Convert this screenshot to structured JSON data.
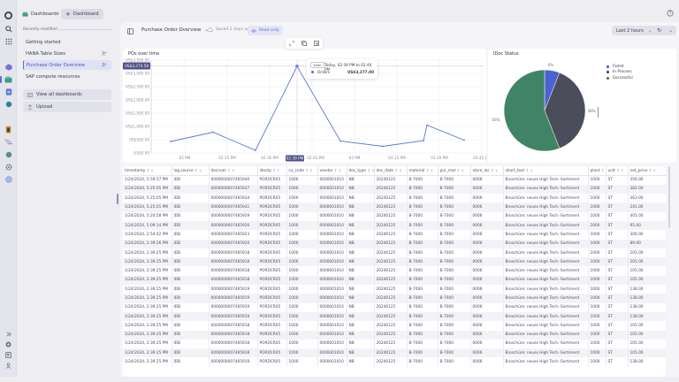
{
  "rail": {
    "icons": [
      "app-logo-icon",
      "search-icon",
      "apps-grid-icon",
      "cube-icon",
      "dashboards-icon",
      "notebooks-icon",
      "settings-hub-icon",
      "battery-icon",
      "timeline-icon",
      "extension-icon",
      "gear-icon",
      "circle-app-icon"
    ],
    "bottom_icons": [
      "expand-icon",
      "help-circle-icon",
      "news-icon",
      "user-icon"
    ]
  },
  "topbar": {
    "dashboards_label": "Dashboards",
    "add_dashboard_label": "Dashboard"
  },
  "sidebar": {
    "recent_label": "Recently modified",
    "items": [
      {
        "label": "Getting started",
        "shared": false,
        "active": false
      },
      {
        "label": "HANA Table Sizes",
        "shared": true,
        "active": false
      },
      {
        "label": "Purchase Order Overview",
        "shared": true,
        "active": true
      },
      {
        "label": "SAP compute resources",
        "shared": false,
        "active": false
      }
    ],
    "view_all_label": "View all dashboards",
    "upload_label": "Upload"
  },
  "toolbar": {
    "title": "Purchase Order Overview",
    "saved": "Saved 2 days ago",
    "read_only": "Read only",
    "timeframe": "Last 2 hours"
  },
  "line_tile": {
    "title": "POs over time",
    "highlight_value": "US$3,274.58",
    "highlight_time": "02:39 PM",
    "tooltip": {
      "badge": "1min",
      "range": "Today, 02:39 PM to 02:40 PM",
      "series": "Orders",
      "value": "US$3,277.00"
    }
  },
  "pie_tile": {
    "title": "IDoc Status"
  },
  "chart_data": [
    {
      "type": "line",
      "title": "POs over time",
      "xlabel": "",
      "ylabel": "",
      "x_ticks": [
        "02 PM",
        "02:15 PM",
        "02:30 PM",
        "02:39 PM",
        "02:45 PM",
        "03 PM",
        "03:15 PM",
        "03:30 PM",
        "03:45 PM"
      ],
      "y_ticks": [
        "US$0.00",
        "US$500.00",
        "US$1,000.00",
        "US$1,500.00",
        "US$2,000.00",
        "US$2,500.00",
        "US$3,000.00",
        "US$3,500.00"
      ],
      "ylim": [
        0,
        3500
      ],
      "grid": true,
      "series": [
        {
          "name": "Orders",
          "color": "#5b78d6",
          "x": [
            "01:55 PM",
            "02:10 PM",
            "02:25 PM",
            "02:39 PM",
            "02:55 PM",
            "03:10 PM",
            "03:25 PM",
            "03:27 PM",
            "03:40 PM"
          ],
          "values": [
            430,
            800,
            120,
            3277,
            430,
            230,
            440,
            1000,
            400
          ]
        }
      ]
    },
    {
      "type": "pie",
      "title": "IDoc Status",
      "legend_position": "right",
      "categories": [
        "Failed",
        "In Process",
        "Successful"
      ],
      "values": [
        6,
        38,
        56
      ],
      "colors": [
        "#4a63d1",
        "#4b4d5a",
        "#3f8466"
      ],
      "labels": [
        "6%",
        "38%",
        "56%"
      ]
    }
  ],
  "table": {
    "columns": [
      "timestamp",
      "log.source",
      "docnum",
      "idoctp",
      "co_code",
      "vendor",
      "doc_type",
      "doc_date",
      "material",
      "pur_mat",
      "store_loc",
      "short_text",
      "plant",
      "unit",
      "net_price"
    ],
    "rows": [
      [
        "1/24/2024, 5:59:57 PM",
        "IDB",
        "0000000007465940",
        "PORDCR05",
        "1000",
        "0000001010",
        "NB",
        "20240125",
        "B-7000",
        "B-7000",
        "0006",
        "Broschüre: neues High Tech.-Sortiment",
        "1000",
        "ST",
        "356.00"
      ],
      [
        "1/24/2024, 5:25:05 PM",
        "IDB",
        "0000000007465937",
        "PORDCR05",
        "1000",
        "0000001010",
        "NB",
        "20240125",
        "B-7000",
        "B-7000",
        "0006",
        "Broschüre: neues High Tech.-Sortiment",
        "1000",
        "ST",
        "382.00"
      ],
      [
        "1/24/2024, 5:25:05 PM",
        "IDB",
        "0000000007465934",
        "PORDCR05",
        "1000",
        "0000001010",
        "NB",
        "20240125",
        "B-7000",
        "B-7000",
        "0006",
        "Broschüre: neues High Tech.-Sortiment",
        "1000",
        "ST",
        "363.00"
      ],
      [
        "1/24/2024, 5:25:01 PM",
        "IDB",
        "0000000007465931",
        "PORDCR05",
        "1000",
        "0000001010",
        "NB",
        "20240125",
        "B-7000",
        "B-7000",
        "0006",
        "Broschüre: neues High Tech.-Sortiment",
        "1000",
        "ST",
        "241.00"
      ],
      [
        "1/24/2024, 5:24:58 PM",
        "IDB",
        "0000000007465929",
        "PORDCR05",
        "1000",
        "0000001010",
        "NB",
        "20240125",
        "B-7000",
        "B-7000",
        "0006",
        "Broschüre: neues High Tech.-Sortiment",
        "1000",
        "ST",
        "405.00"
      ],
      [
        "1/24/2024, 5:09:14 PM",
        "IDB",
        "0000000007465926",
        "PORDCR05",
        "1000",
        "0000001010",
        "NB",
        "20240125",
        "B-7000",
        "B-7000",
        "0006",
        "Broschüre: neues High Tech.-Sortiment",
        "1000",
        "ST",
        "95.00"
      ],
      [
        "1/24/2024, 2:54:42 PM",
        "IDB",
        "0000000007465923",
        "PORDCR05",
        "1000",
        "0000001010",
        "NB",
        "20240125",
        "B-7000",
        "B-7000",
        "0006",
        "Broschüre: neues High Tech.-Sortiment",
        "1000",
        "ST",
        "306.00"
      ],
      [
        "1/24/2024, 2:39:26 PM",
        "IDB",
        "0000000007465920",
        "PORDCR05",
        "1000",
        "0000001010",
        "NB",
        "20240125",
        "B-7000",
        "B-7000",
        "0006",
        "Broschüre: neues High Tech.-Sortiment",
        "1000",
        "ST",
        "89.00"
      ],
      [
        "1/24/2024, 2:39:25 PM",
        "IDB",
        "0000000007465918",
        "PORDCR05",
        "1000",
        "0000001010",
        "NB",
        "20240125",
        "B-7000",
        "B-7000",
        "0006",
        "Broschüre: neues High Tech.-Sortiment",
        "1000",
        "ST",
        "105.00"
      ],
      [
        "1/24/2024, 2:39:25 PM",
        "IDB",
        "0000000007465918",
        "PORDCR05",
        "1000",
        "0000001010",
        "NB",
        "20240125",
        "B-7000",
        "B-7000",
        "0006",
        "Broschüre: neues High Tech.-Sortiment",
        "1000",
        "ST",
        "105.00"
      ],
      [
        "1/24/2024, 2:39:25 PM",
        "IDB",
        "0000000007465918",
        "PORDCR05",
        "1000",
        "0000001010",
        "NB",
        "20240125",
        "B-7000",
        "B-7000",
        "0006",
        "Broschüre: neues High Tech.-Sortiment",
        "1000",
        "ST",
        "105.00"
      ],
      [
        "1/24/2024, 2:39:25 PM",
        "IDB",
        "0000000007465918",
        "PORDCR05",
        "1000",
        "0000001010",
        "NB",
        "20240125",
        "B-7000",
        "B-7000",
        "0006",
        "Broschüre: neues High Tech.-Sortiment",
        "1000",
        "ST",
        "105.00"
      ],
      [
        "1/24/2024, 2:39:25 PM",
        "IDB",
        "0000000007465919",
        "PORDCR05",
        "1000",
        "0000001010",
        "NB",
        "20240125",
        "B-7000",
        "B-7000",
        "0006",
        "Broschüre: neues High Tech.-Sortiment",
        "1000",
        "ST",
        "138.00"
      ],
      [
        "1/24/2024, 2:39:25 PM",
        "IDB",
        "0000000007465919",
        "PORDCR05",
        "1000",
        "0000001010",
        "NB",
        "20240125",
        "B-7000",
        "B-7000",
        "0006",
        "Broschüre: neues High Tech.-Sortiment",
        "1000",
        "ST",
        "138.00"
      ],
      [
        "1/24/2024, 2:39:25 PM",
        "IDB",
        "0000000007465919",
        "PORDCR05",
        "1000",
        "0000001010",
        "NB",
        "20240125",
        "B-7000",
        "B-7000",
        "0006",
        "Broschüre: neues High Tech.-Sortiment",
        "1000",
        "ST",
        "138.00"
      ],
      [
        "1/24/2024, 2:39:25 PM",
        "IDB",
        "0000000007465919",
        "PORDCR05",
        "1000",
        "0000001010",
        "NB",
        "20240125",
        "B-7000",
        "B-7000",
        "0006",
        "Broschüre: neues High Tech.-Sortiment",
        "1000",
        "ST",
        "138.00"
      ],
      [
        "1/24/2024, 2:39:25 PM",
        "IDB",
        "0000000007465918",
        "PORDCR05",
        "1000",
        "0000001010",
        "NB",
        "20240125",
        "B-7000",
        "B-7000",
        "0006",
        "Broschüre: neues High Tech.-Sortiment",
        "1000",
        "ST",
        "105.00"
      ],
      [
        "1/24/2024, 2:39:25 PM",
        "IDB",
        "0000000007465918",
        "PORDCR05",
        "1000",
        "0000001010",
        "NB",
        "20240125",
        "B-7000",
        "B-7000",
        "0006",
        "Broschüre: neues High Tech.-Sortiment",
        "1000",
        "ST",
        "105.00"
      ],
      [
        "1/24/2024, 2:39:25 PM",
        "IDB",
        "0000000007465918",
        "PORDCR05",
        "1000",
        "0000001010",
        "NB",
        "20240125",
        "B-7000",
        "B-7000",
        "0006",
        "Broschüre: neues High Tech.-Sortiment",
        "1000",
        "ST",
        "105.00"
      ],
      [
        "1/24/2024, 2:39:25 PM",
        "IDB",
        "0000000007465918",
        "PORDCR05",
        "1000",
        "0000001010",
        "NB",
        "20240125",
        "B-7000",
        "B-7000",
        "0006",
        "Broschüre: neues High Tech.-Sortiment",
        "1000",
        "ST",
        "105.00"
      ],
      [
        "1/24/2024, 2:39:25 PM",
        "IDB",
        "0000000007465919",
        "PORDCR05",
        "1000",
        "0000001010",
        "NB",
        "20240125",
        "B-7000",
        "B-7000",
        "0006",
        "Broschüre: neues High Tech.-Sortiment",
        "1000",
        "ST",
        "138.00"
      ]
    ]
  },
  "colors": {
    "accent": "#5b6bd6",
    "line": "#5b78d6",
    "highlight_bg": "#4f5185",
    "failed": "#4a63d1",
    "in_process": "#4b4d5a",
    "successful": "#3f8466"
  }
}
